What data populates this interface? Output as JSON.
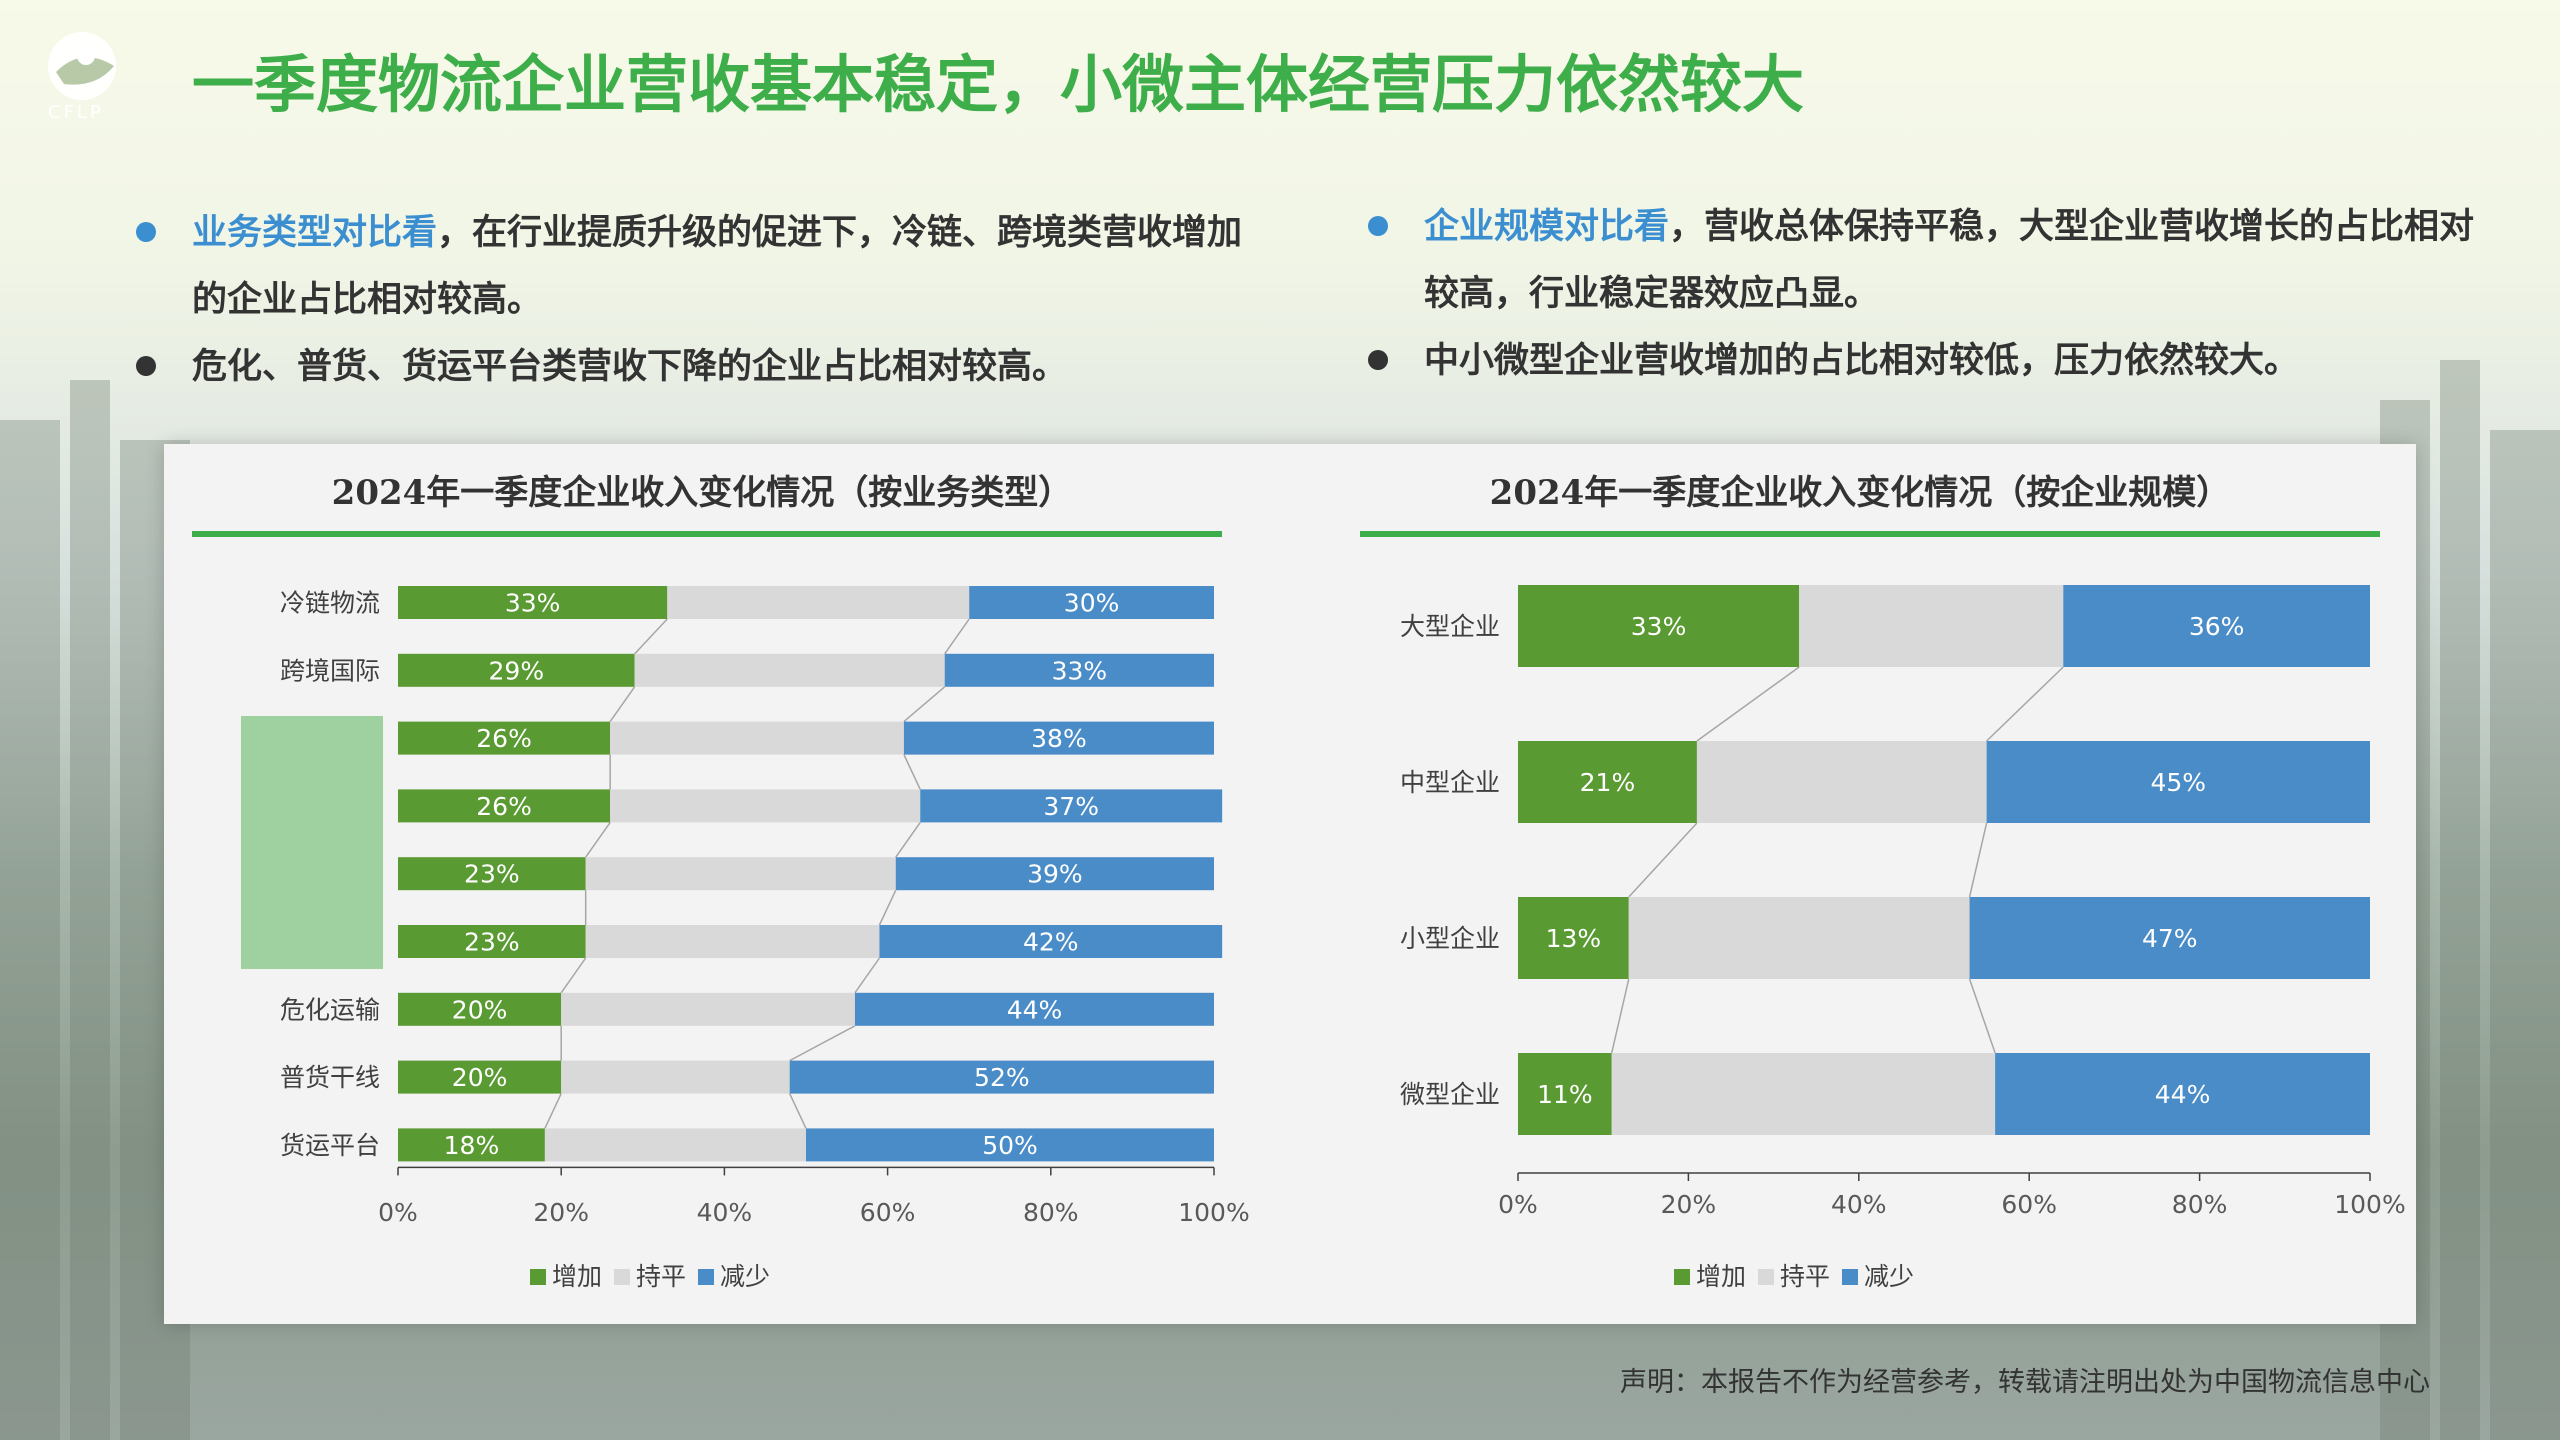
{
  "header": {
    "logo_text": "CFLP",
    "title": "一季度物流企业营收基本稳定，小微主体经营压力依然较大"
  },
  "bullets_left": [
    {
      "highlight": "业务类型对比看",
      "text": "，在行业提质升级的促进下，冷链、跨境类营收增加的企业占比相对较高。"
    },
    {
      "highlight": "",
      "text": "危化、普货、货运平台类营收下降的企业占比相对较高。"
    }
  ],
  "bullets_right": [
    {
      "highlight": "企业规模对比看",
      "text": "，营收总体保持平稳，大型企业营收增长的占比相对较高，行业稳定器效应凸显。"
    },
    {
      "highlight": "",
      "text": "中小微型企业营收增加的占比相对较低，压力依然较大。"
    }
  ],
  "colors": {
    "increase": "#5a9a32",
    "flat": "#d9d9d9",
    "decrease": "#4a8cc7",
    "accent": "#3dae49",
    "highlight": "#3b8fd0"
  },
  "chart_data": [
    {
      "type": "bar",
      "stacked": true,
      "orientation": "horizontal",
      "title": "2024年一季度企业收入变化情况（按业务类型）",
      "categories": [
        "冷链物流",
        "跨境国际",
        "",
        "",
        "",
        "",
        "危化运输",
        "普货干线",
        "货运平台"
      ],
      "series": [
        {
          "name": "增加",
          "values": [
            33,
            29,
            26,
            26,
            23,
            23,
            20,
            20,
            18
          ]
        },
        {
          "name": "持平",
          "values": [
            37,
            38,
            36,
            38,
            38,
            36,
            36,
            28,
            32
          ]
        },
        {
          "name": "减少",
          "values": [
            30,
            33,
            38,
            37,
            39,
            42,
            44,
            52,
            50
          ]
        }
      ],
      "xlim": [
        0,
        100
      ],
      "x_ticks": [
        "0%",
        "20%",
        "40%",
        "60%",
        "80%",
        "100%"
      ],
      "labelled_series": [
        "增加",
        "减少"
      ],
      "value_suffix": "%",
      "legend": [
        "增加",
        "持平",
        "减少"
      ],
      "legend_position": "bottom"
    },
    {
      "type": "bar",
      "stacked": true,
      "orientation": "horizontal",
      "title": "2024年一季度企业收入变化情况（按企业规模）",
      "categories": [
        "大型企业",
        "中型企业",
        "小型企业",
        "微型企业"
      ],
      "series": [
        {
          "name": "增加",
          "values": [
            33,
            21,
            13,
            11
          ]
        },
        {
          "name": "持平",
          "values": [
            31,
            34,
            40,
            45
          ]
        },
        {
          "name": "减少",
          "values": [
            36,
            45,
            47,
            44
          ]
        }
      ],
      "xlim": [
        0,
        100
      ],
      "x_ticks": [
        "0%",
        "20%",
        "40%",
        "60%",
        "80%",
        "100%"
      ],
      "labelled_series": [
        "增加",
        "减少"
      ],
      "value_suffix": "%",
      "legend": [
        "增加",
        "持平",
        "减少"
      ],
      "legend_position": "bottom"
    }
  ],
  "footer": {
    "disclaimer": "声明：本报告不作为经营参考，转载请注明出处为中国物流信息中心"
  }
}
